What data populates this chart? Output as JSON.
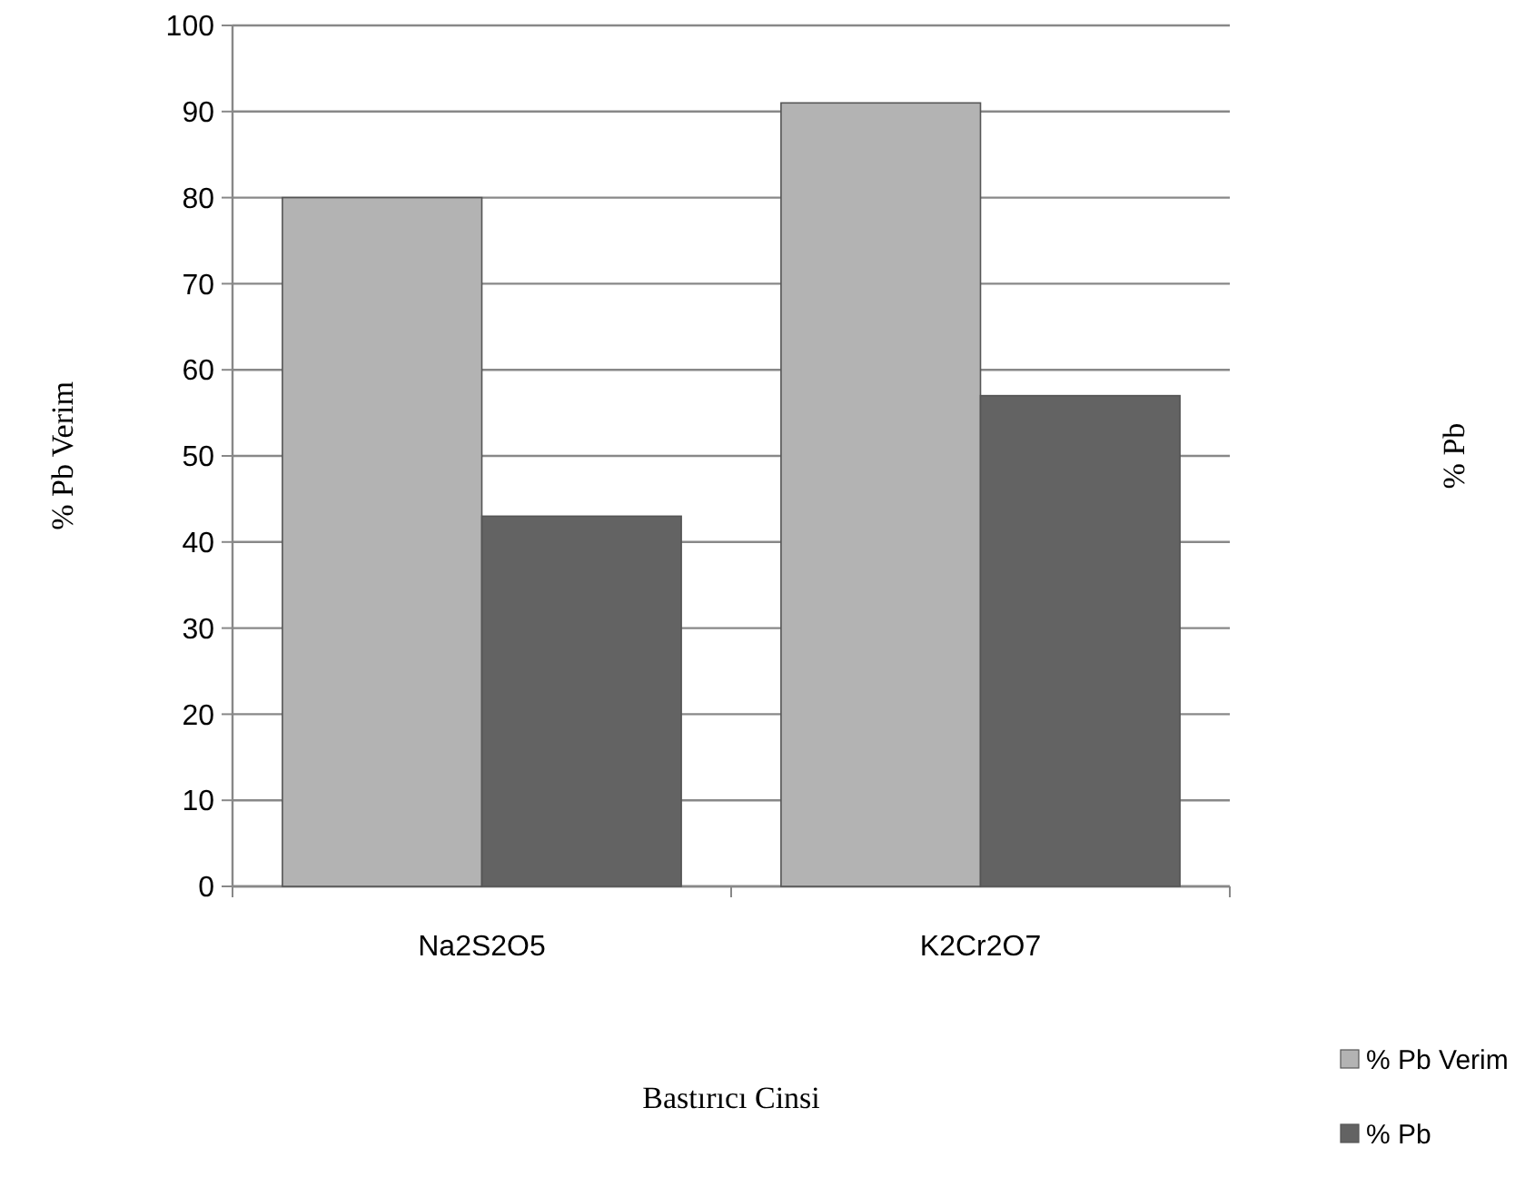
{
  "chart_data": {
    "type": "bar",
    "xlabel": "Bastırıcı Cinsi",
    "ylabel": "% Pb Verim",
    "annotations": [
      "% Pb"
    ],
    "categories": [
      "Na2S2O5",
      "K2Cr2O7"
    ],
    "series": [
      {
        "name": "% Pb Verim",
        "color": "#b3b3b3",
        "values": [
          80,
          91
        ]
      },
      {
        "name": "% Pb",
        "color": "#636363",
        "values": [
          43,
          57
        ]
      }
    ],
    "ylim": [
      0,
      100
    ],
    "yticks": [
      0,
      10,
      20,
      30,
      40,
      50,
      60,
      70,
      80,
      90,
      100
    ],
    "grid": "y",
    "legend": "bottom right"
  }
}
